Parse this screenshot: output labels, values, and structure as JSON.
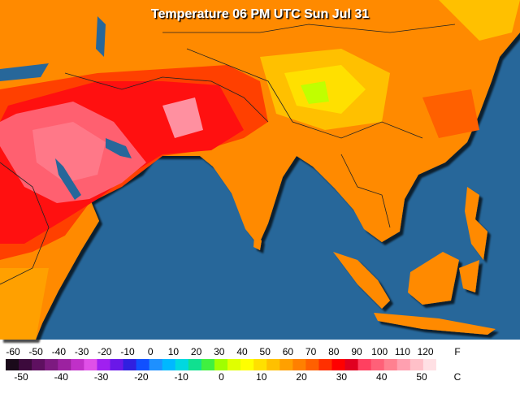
{
  "title": "Temperature 06 PM UTC Sun Jul 31",
  "legend": {
    "fahrenheit_unit": "F",
    "celsius_unit": "C",
    "fahrenheit_labels": [
      -60,
      -50,
      -40,
      -30,
      -20,
      -10,
      0,
      10,
      20,
      30,
      40,
      50,
      60,
      70,
      80,
      90,
      100,
      110,
      120
    ],
    "celsius_labels": [
      -50,
      -40,
      -30,
      -20,
      -10,
      0,
      10,
      20,
      30,
      40,
      50
    ],
    "colors": [
      "#1a0a1a",
      "#3c0a3c",
      "#5e1060",
      "#7d1a80",
      "#9c22a0",
      "#c030c8",
      "#e050e8",
      "#a020f0",
      "#6a18e8",
      "#3020e0",
      "#1050ff",
      "#1e90ff",
      "#00b8ff",
      "#00d8e0",
      "#10e090",
      "#40f040",
      "#a0ff00",
      "#e0ff00",
      "#ffff00",
      "#ffe000",
      "#ffc000",
      "#ffa000",
      "#ff8000",
      "#ff6000",
      "#ff3000",
      "#ff0000",
      "#e00020",
      "#ff4060",
      "#ff6078",
      "#ff8090",
      "#ffa0b0",
      "#ffc0c8",
      "#ffe0e4",
      "#ffffff"
    ]
  }
}
